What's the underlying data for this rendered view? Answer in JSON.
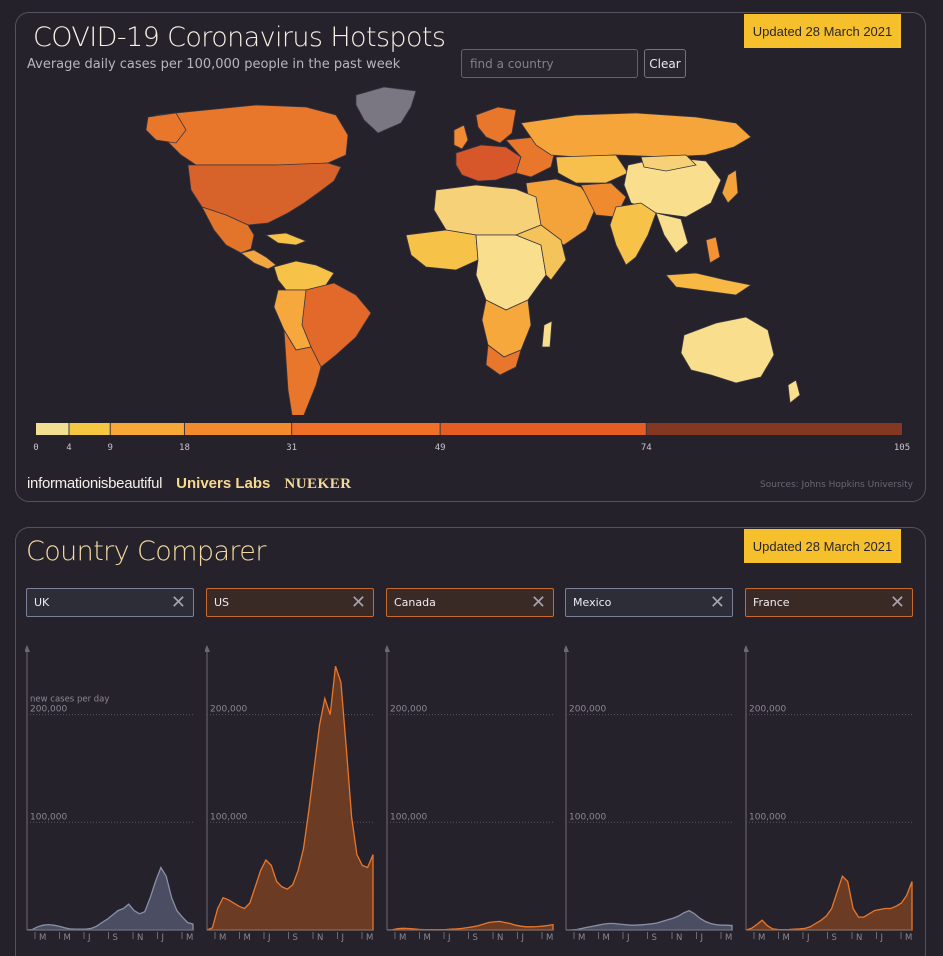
{
  "hotspots": {
    "title": "COVID-19 Coronavirus Hotspots",
    "subtitle": "Average daily cases per 100,000 people in the past week",
    "updated": "Updated 28 March 2021",
    "search_placeholder": "find a country",
    "clear_label": "Clear",
    "legend_ticks": [
      "0",
      "4",
      "9",
      "18",
      "31",
      "49",
      "74",
      "105"
    ],
    "legend_values": [
      0,
      4,
      9,
      18,
      31,
      49,
      74,
      105
    ],
    "legend_colors": [
      "#f2df90",
      "#f6c743",
      "#f7a836",
      "#f48a2c",
      "#ef7026",
      "#e45e24",
      "#d14a1f"
    ],
    "brands": [
      "informationisbeautiful",
      "Univers Labs",
      "NUEKER"
    ],
    "sources": "Sources: Johns Hopkins University"
  },
  "comparer": {
    "title": "Country Comparer",
    "updated": "Updated 28 March 2021",
    "y_label": "new cases per day",
    "y_ticks": [
      "200,000",
      "100,000"
    ],
    "x_ticks": [
      "M",
      "M",
      "J",
      "S",
      "N",
      "J",
      "M"
    ],
    "countries": [
      {
        "name": "UK",
        "color": "#8a8fa8"
      },
      {
        "name": "US",
        "color": "#e9772b"
      },
      {
        "name": "Canada",
        "color": "#e9772b"
      },
      {
        "name": "Mexico",
        "color": "#8a8fa8"
      },
      {
        "name": "France",
        "color": "#e9772b"
      }
    ]
  },
  "chart_data": [
    {
      "type": "area",
      "series": [
        {
          "name": "UK",
          "values": [
            0,
            500,
            3000,
            4500,
            5000,
            4500,
            3500,
            2000,
            1000,
            800,
            700,
            800,
            1500,
            3500,
            7000,
            10000,
            14000,
            18000,
            20000,
            24000,
            18000,
            15000,
            17000,
            30000,
            45000,
            58000,
            50000,
            30000,
            18000,
            12000,
            7000,
            5500
          ]
        }
      ],
      "ylim": [
        0,
        260000
      ],
      "x_ticks": [
        "M",
        "M",
        "J",
        "S",
        "N",
        "J",
        "M"
      ]
    },
    {
      "type": "area",
      "series": [
        {
          "name": "US",
          "values": [
            0,
            2000,
            20000,
            30000,
            28000,
            25000,
            22000,
            20000,
            25000,
            40000,
            55000,
            65000,
            60000,
            45000,
            40000,
            38000,
            42000,
            55000,
            75000,
            110000,
            150000,
            190000,
            215000,
            200000,
            245000,
            230000,
            170000,
            105000,
            70000,
            60000,
            58000,
            70000
          ]
        }
      ],
      "ylim": [
        0,
        260000
      ],
      "x_ticks": [
        "M",
        "M",
        "J",
        "S",
        "N",
        "J",
        "M"
      ]
    },
    {
      "type": "area",
      "series": [
        {
          "name": "Canada",
          "values": [
            0,
            200,
            1200,
            1600,
            1400,
            1000,
            600,
            300,
            300,
            350,
            400,
            500,
            700,
            1000,
            1500,
            2200,
            3000,
            4000,
            5500,
            7000,
            7500,
            8000,
            7000,
            6000,
            4500,
            3500,
            3000,
            3000,
            3200,
            3500,
            4200,
            5000
          ]
        }
      ],
      "ylim": [
        0,
        260000
      ],
      "x_ticks": [
        "M",
        "M",
        "J",
        "S",
        "N",
        "J",
        "M"
      ]
    },
    {
      "type": "area",
      "series": [
        {
          "name": "Mexico",
          "values": [
            0,
            100,
            500,
            1500,
            2500,
            3500,
            4500,
            5500,
            6000,
            6000,
            5500,
            5000,
            4500,
            4500,
            4800,
            5200,
            5800,
            6500,
            8000,
            9500,
            11000,
            13000,
            16000,
            18000,
            15000,
            11000,
            8000,
            6000,
            5000,
            4500,
            4500,
            4200
          ]
        }
      ],
      "ylim": [
        0,
        260000
      ],
      "x_ticks": [
        "M",
        "M",
        "J",
        "S",
        "N",
        "J",
        "M"
      ]
    },
    {
      "type": "area",
      "series": [
        {
          "name": "France",
          "values": [
            0,
            1500,
            5000,
            9000,
            4000,
            1000,
            500,
            400,
            500,
            800,
            1000,
            1500,
            3000,
            6000,
            9000,
            13000,
            20000,
            35000,
            50000,
            45000,
            20000,
            12000,
            12000,
            15000,
            18000,
            19000,
            20000,
            20000,
            22000,
            25000,
            32000,
            45000
          ]
        }
      ],
      "ylim": [
        0,
        260000
      ],
      "x_ticks": [
        "M",
        "M",
        "J",
        "S",
        "N",
        "J",
        "M"
      ]
    }
  ]
}
